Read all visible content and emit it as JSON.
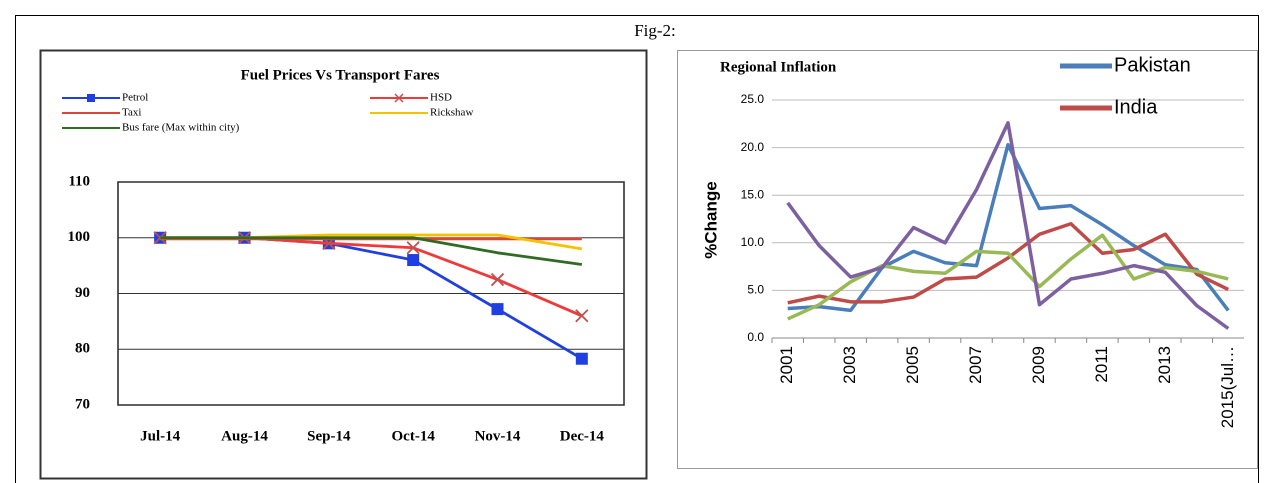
{
  "figure_label": "Fig-2:",
  "chart_data": [
    {
      "type": "line",
      "title": "Fuel Prices Vs Transport Fares",
      "categories": [
        "Jul-14",
        "Aug-14",
        "Sep-14",
        "Oct-14",
        "Nov-14",
        "Dec-14"
      ],
      "ylim": [
        70,
        110
      ],
      "yticks": [
        70,
        80,
        90,
        100,
        110
      ],
      "grid": true,
      "series": [
        {
          "name": "Petrol",
          "color": "#1f3fe0",
          "marker": "square",
          "values": [
            100,
            100,
            99,
            96,
            87.2,
            78.3
          ]
        },
        {
          "name": "HSD",
          "color": "#f03a3a",
          "marker": "x",
          "values": [
            100,
            100,
            99,
            98.2,
            92.5,
            86
          ]
        },
        {
          "name": "Taxi",
          "color": "#d9473a",
          "values": [
            99.8,
            99.8,
            99.8,
            99.8,
            99.8,
            99.8
          ]
        },
        {
          "name": "Rickshaw",
          "color": "#f5c200",
          "values": [
            100,
            100,
            100.5,
            100.5,
            100.5,
            98
          ]
        },
        {
          "name": "Bus fare (Max within city)",
          "color": "#2f6b22",
          "values": [
            100,
            100,
            100,
            100,
            97.3,
            95.2
          ]
        }
      ]
    },
    {
      "type": "line",
      "title": "Regional Inflation",
      "y_label": "%Change",
      "categories": [
        "2001",
        null,
        "2003",
        null,
        "2005",
        null,
        "2007",
        null,
        "2009",
        null,
        "2011",
        null,
        "2013",
        null,
        "2015(Jul…"
      ],
      "ylim": [
        0,
        25
      ],
      "yticks": [
        {
          "value": 0,
          "label": "0.0"
        },
        {
          "value": 5,
          "label": "5.0"
        },
        {
          "value": 10,
          "label": "10.0"
        },
        {
          "value": 15,
          "label": "15.0"
        },
        {
          "value": 20,
          "label": "20.0"
        },
        {
          "value": 25,
          "label": "25.0"
        }
      ],
      "grid": true,
      "series": [
        {
          "name": "Pakistan",
          "color": "#4a7ebb",
          "values": [
            3.1,
            3.3,
            2.9,
            7.4,
            9.1,
            7.9,
            7.6,
            20.3,
            13.6,
            13.9,
            11.9,
            9.7,
            7.7,
            7.2,
            2.9
          ]
        },
        {
          "name": "India",
          "color": "#be4b48",
          "values": [
            3.7,
            4.4,
            3.8,
            3.8,
            4.3,
            6.2,
            6.4,
            8.4,
            10.9,
            12.0,
            8.9,
            9.3,
            10.9,
            6.7,
            5.1
          ]
        },
        {
          "color": "#98b954",
          "values": [
            2.0,
            3.5,
            5.9,
            7.6,
            7.0,
            6.8,
            9.1,
            8.9,
            5.4,
            8.3,
            10.8,
            6.2,
            7.4,
            7.0,
            6.2
          ]
        },
        {
          "color": "#7d60a0",
          "values": [
            14.2,
            9.7,
            6.4,
            7.4,
            11.6,
            10.0,
            15.6,
            22.6,
            3.5,
            6.2,
            6.8,
            7.6,
            6.9,
            3.4,
            1.0
          ]
        }
      ]
    }
  ]
}
